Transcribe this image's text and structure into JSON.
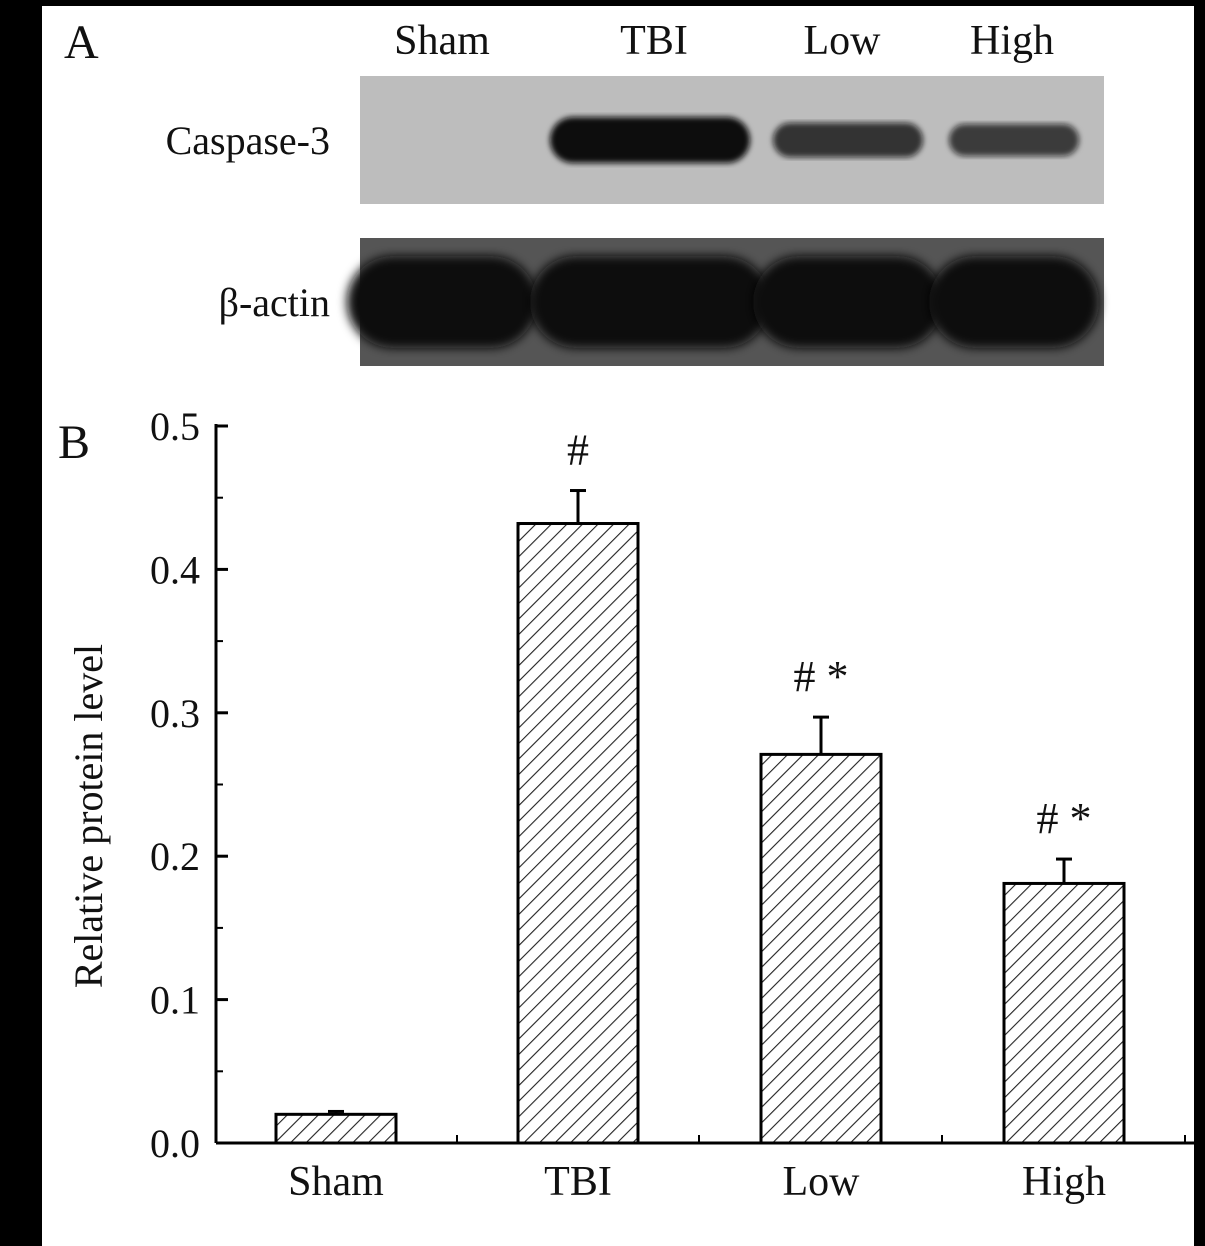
{
  "panel_a": {
    "letter": "A",
    "lanes": [
      "Sham",
      "TBI",
      "Low",
      "High"
    ],
    "rows": [
      {
        "label": "Caspase-3",
        "intensity": [
          0.0,
          1.0,
          0.55,
          0.45
        ]
      },
      {
        "label": "β-actin",
        "intensity": [
          1.0,
          1.0,
          1.0,
          1.0
        ]
      }
    ]
  },
  "panel_b": {
    "letter": "B"
  },
  "chart_data": {
    "type": "bar",
    "categories": [
      "Sham",
      "TBI",
      "Low",
      "High"
    ],
    "values": [
      0.02,
      0.432,
      0.271,
      0.181
    ],
    "errors": [
      0.002,
      0.023,
      0.026,
      0.017
    ],
    "annotations": [
      "",
      "#",
      "# *",
      "# *"
    ],
    "ylabel": "Relative protein level",
    "xlabel": "",
    "ylim": [
      0,
      0.5
    ],
    "yticks": [
      "0.0",
      "0.1",
      "0.2",
      "0.3",
      "0.4",
      "0.5"
    ],
    "bar_fill": "hatched"
  }
}
